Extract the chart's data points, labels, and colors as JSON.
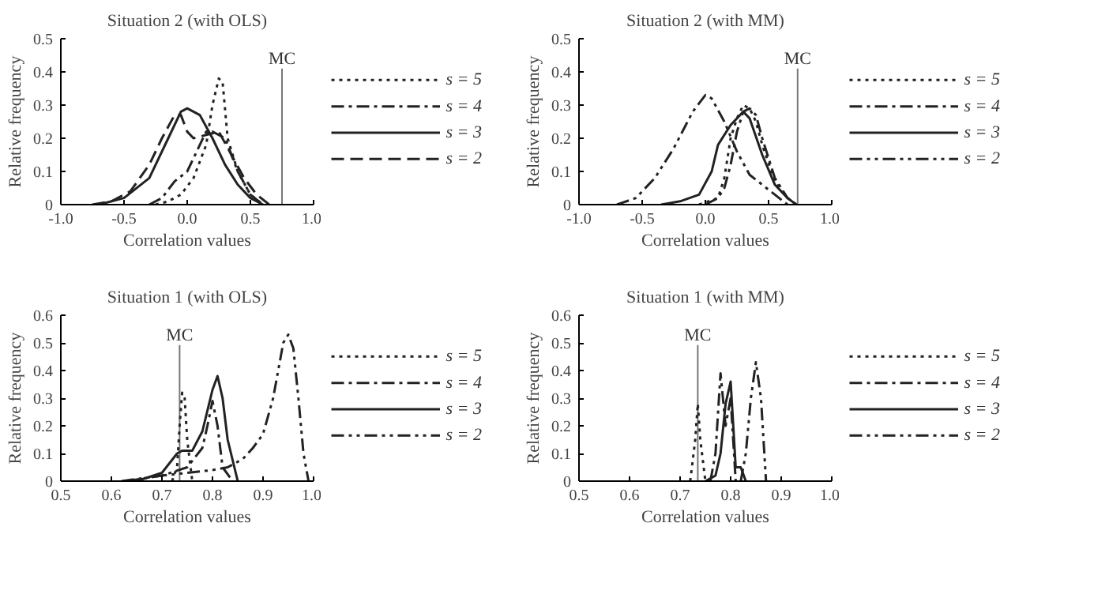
{
  "chart_data": [
    {
      "type": "line",
      "title": "Situation 2 (with OLS)",
      "xlabel": "Correlation values",
      "ylabel": "Relative frequency",
      "xlim": [
        -1,
        1
      ],
      "ylim": [
        0,
        0.5
      ],
      "xticks": [
        {
          "value": -1,
          "label": "-1.0"
        },
        -0.5,
        {
          "value": 0,
          "label": "0.0"
        },
        0.5,
        {
          "value": 1,
          "label": "1.0"
        }
      ],
      "yticks": [
        0,
        0.1,
        0.2,
        0.3,
        0.4,
        0.5
      ],
      "grid": false,
      "legend": "right",
      "ref_lines": [
        {
          "axis": "x",
          "value": 0.75,
          "label": "MC"
        }
      ],
      "series": [
        {
          "name": "s = 5",
          "color": "#222222",
          "line_style": "dotted",
          "x": [
            -0.25,
            -0.15,
            -0.05,
            0.05,
            0.15,
            0.2,
            0.25,
            0.28,
            0.32,
            0.4,
            0.5,
            0.6
          ],
          "values": [
            0,
            0.01,
            0.03,
            0.08,
            0.18,
            0.3,
            0.38,
            0.37,
            0.2,
            0.1,
            0.03,
            0
          ]
        },
        {
          "name": "s = 4",
          "color": "#222222",
          "line_style": "dashdot",
          "x": [
            -0.3,
            -0.2,
            -0.1,
            0.0,
            0.1,
            0.15,
            0.2,
            0.3,
            0.4,
            0.5,
            0.6
          ],
          "values": [
            0,
            0.02,
            0.07,
            0.1,
            0.18,
            0.22,
            0.22,
            0.2,
            0.1,
            0.03,
            0
          ]
        },
        {
          "name": "s = 3",
          "color": "#222222",
          "line_style": "solid",
          "x": [
            -0.7,
            -0.5,
            -0.3,
            -0.15,
            -0.05,
            0.0,
            0.1,
            0.2,
            0.3,
            0.4,
            0.5,
            0.6
          ],
          "values": [
            0,
            0.02,
            0.08,
            0.2,
            0.28,
            0.29,
            0.27,
            0.2,
            0.12,
            0.06,
            0.02,
            0
          ]
        },
        {
          "name": "s = 2",
          "color": "#222222",
          "line_style": "dashed",
          "x": [
            -0.75,
            -0.6,
            -0.45,
            -0.3,
            -0.2,
            -0.1,
            -0.05,
            0.0,
            0.05,
            0.15,
            0.25,
            0.35,
            0.45,
            0.55,
            0.65
          ],
          "values": [
            0,
            0.01,
            0.04,
            0.12,
            0.2,
            0.27,
            0.27,
            0.22,
            0.2,
            0.21,
            0.22,
            0.15,
            0.08,
            0.03,
            0
          ]
        }
      ]
    },
    {
      "type": "line",
      "title": "Situation 2 (with MM)",
      "xlabel": "Correlation values",
      "ylabel": "Relative frequency",
      "xlim": [
        -1,
        1
      ],
      "ylim": [
        0,
        0.5
      ],
      "xticks": [
        {
          "value": -1,
          "label": "-1.0"
        },
        -0.5,
        {
          "value": 0,
          "label": "0.0"
        },
        0.5,
        {
          "value": 1,
          "label": "1.0"
        }
      ],
      "yticks": [
        0,
        0.1,
        0.2,
        0.3,
        0.4,
        0.5
      ],
      "grid": false,
      "legend": "right",
      "ref_lines": [
        {
          "axis": "x",
          "value": 0.73,
          "label": "MC"
        }
      ],
      "series": [
        {
          "name": "s = 5",
          "color": "#222222",
          "line_style": "dotted",
          "x": [
            -0.05,
            0.1,
            0.15,
            0.2,
            0.25,
            0.3,
            0.35,
            0.4,
            0.45,
            0.55,
            0.65,
            0.72
          ],
          "values": [
            0,
            0.02,
            0.08,
            0.2,
            0.26,
            0.3,
            0.29,
            0.25,
            0.18,
            0.07,
            0.02,
            0
          ]
        },
        {
          "name": "s = 4",
          "color": "#222222",
          "line_style": "dashdot",
          "x": [
            0.0,
            0.1,
            0.15,
            0.2,
            0.25,
            0.3,
            0.35,
            0.4,
            0.45,
            0.55,
            0.65,
            0.72
          ],
          "values": [
            0,
            0.02,
            0.05,
            0.12,
            0.22,
            0.28,
            0.29,
            0.27,
            0.2,
            0.08,
            0.02,
            0
          ]
        },
        {
          "name": "s = 3",
          "color": "#222222",
          "line_style": "solid",
          "x": [
            -0.35,
            -0.2,
            -0.05,
            0.05,
            0.1,
            0.2,
            0.3,
            0.35,
            0.45,
            0.55,
            0.65,
            0.72
          ],
          "values": [
            0,
            0.01,
            0.03,
            0.1,
            0.18,
            0.24,
            0.28,
            0.26,
            0.15,
            0.06,
            0.02,
            0
          ]
        },
        {
          "name": "s = 2",
          "color": "#222222",
          "line_style": "dashdotdot",
          "x": [
            -0.7,
            -0.55,
            -0.4,
            -0.25,
            -0.1,
            0.0,
            0.05,
            0.15,
            0.25,
            0.35,
            0.45,
            0.55,
            0.65
          ],
          "values": [
            0,
            0.02,
            0.08,
            0.17,
            0.28,
            0.33,
            0.32,
            0.25,
            0.16,
            0.09,
            0.06,
            0.03,
            0
          ]
        }
      ]
    },
    {
      "type": "line",
      "title": "Situation 1 (with OLS)",
      "xlabel": "Correlation values",
      "ylabel": "Relative frequency",
      "xlim": [
        0.5,
        1
      ],
      "ylim": [
        0,
        0.6
      ],
      "xticks": [
        0.5,
        0.6,
        0.7,
        0.8,
        0.9,
        {
          "value": 1,
          "label": "1.0"
        }
      ],
      "yticks": [
        0,
        0.1,
        0.2,
        0.3,
        0.4,
        0.5,
        0.6
      ],
      "grid": false,
      "legend": "right",
      "ref_lines": [
        {
          "axis": "x",
          "value": 0.735,
          "label": "MC"
        }
      ],
      "series": [
        {
          "name": "s = 5",
          "color": "#222222",
          "line_style": "dotted",
          "x": [
            0.72,
            0.73,
            0.735,
            0.74,
            0.745,
            0.75,
            0.76
          ],
          "values": [
            0,
            0.05,
            0.2,
            0.32,
            0.3,
            0.15,
            0
          ]
        },
        {
          "name": "s = 4",
          "color": "#222222",
          "line_style": "dashdot",
          "x": [
            0.63,
            0.7,
            0.75,
            0.78,
            0.79,
            0.8,
            0.81,
            0.82,
            0.84
          ],
          "values": [
            0,
            0.02,
            0.05,
            0.12,
            0.2,
            0.29,
            0.2,
            0.05,
            0
          ]
        },
        {
          "name": "s = 3",
          "color": "#222222",
          "line_style": "solid",
          "x": [
            0.65,
            0.7,
            0.73,
            0.74,
            0.76,
            0.78,
            0.8,
            0.81,
            0.82,
            0.83,
            0.85
          ],
          "values": [
            0,
            0.03,
            0.1,
            0.11,
            0.11,
            0.18,
            0.33,
            0.38,
            0.3,
            0.15,
            0
          ]
        },
        {
          "name": "s = 2",
          "color": "#222222",
          "line_style": "dashdotdot",
          "x": [
            0.62,
            0.7,
            0.8,
            0.83,
            0.86,
            0.88,
            0.9,
            0.92,
            0.94,
            0.95,
            0.96,
            0.97,
            0.98,
            0.99
          ],
          "values": [
            0,
            0.02,
            0.04,
            0.05,
            0.08,
            0.12,
            0.17,
            0.3,
            0.5,
            0.53,
            0.48,
            0.3,
            0.1,
            0
          ]
        }
      ]
    },
    {
      "type": "line",
      "title": "Situation 1 (with MM)",
      "xlabel": "Correlation values",
      "ylabel": "Relative frequency",
      "xlim": [
        0.5,
        1
      ],
      "ylim": [
        0,
        0.6
      ],
      "xticks": [
        0.5,
        0.6,
        0.7,
        0.8,
        0.9,
        {
          "value": 1,
          "label": "1.0"
        }
      ],
      "yticks": [
        0,
        0.1,
        0.2,
        0.3,
        0.4,
        0.5,
        0.6
      ],
      "grid": false,
      "legend": "right",
      "ref_lines": [
        {
          "axis": "x",
          "value": 0.735,
          "label": "MC"
        }
      ],
      "series": [
        {
          "name": "s = 5",
          "color": "#222222",
          "line_style": "dotted",
          "x": [
            0.72,
            0.73,
            0.735,
            0.74,
            0.75
          ],
          "values": [
            0,
            0.15,
            0.28,
            0.15,
            0
          ]
        },
        {
          "name": "s = 4",
          "color": "#222222",
          "line_style": "dashdot",
          "x": [
            0.76,
            0.77,
            0.78,
            0.79,
            0.8,
            0.81
          ],
          "values": [
            0,
            0.1,
            0.39,
            0.2,
            0.3,
            0
          ]
        },
        {
          "name": "s = 3",
          "color": "#222222",
          "line_style": "solid",
          "x": [
            0.75,
            0.77,
            0.78,
            0.79,
            0.8,
            0.81,
            0.82,
            0.83
          ],
          "values": [
            0,
            0.02,
            0.1,
            0.28,
            0.36,
            0.05,
            0.05,
            0
          ]
        },
        {
          "name": "s = 2",
          "color": "#222222",
          "line_style": "dashdotdot",
          "x": [
            0.82,
            0.83,
            0.84,
            0.85,
            0.86,
            0.87
          ],
          "values": [
            0,
            0.1,
            0.3,
            0.43,
            0.3,
            0
          ]
        }
      ]
    }
  ]
}
